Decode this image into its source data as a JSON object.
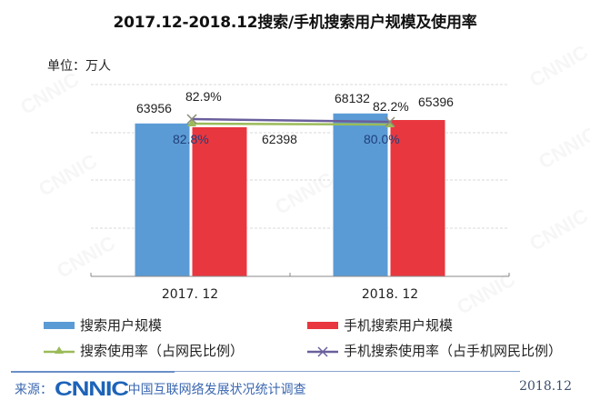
{
  "header": {
    "title": "2017.12-2018.12搜索/手机搜索用户规模及使用率",
    "unit": "单位：万人"
  },
  "chart_data": {
    "type": "bar",
    "title": "2017.12-2018.12搜索/手机搜索用户规模及使用率",
    "ylabel": "单位：万人",
    "xlabel": "",
    "categories": [
      "2017.12",
      "2018.12"
    ],
    "ylim": [
      0,
      80000
    ],
    "grid": true,
    "legend_position": "bottom",
    "series": [
      {
        "name": "搜索用户规模",
        "type": "bar",
        "color": "#5b9bd5",
        "values": [
          63956,
          68132
        ]
      },
      {
        "name": "手机搜索用户规模",
        "type": "bar",
        "color": "#e8373f",
        "values": [
          62398,
          65396
        ]
      },
      {
        "name": "搜索使用率（占网民比例）",
        "type": "line",
        "color": "#9bbb59",
        "marker": "triangle",
        "values": [
          82.8,
          82.2
        ],
        "unit": "%"
      },
      {
        "name": "手机搜索使用率（占手机网民比例）",
        "type": "line",
        "color": "#6a5f9c",
        "marker": "x",
        "values": [
          82.9,
          80.0
        ],
        "unit": "%"
      }
    ],
    "labels": {
      "bar_labels": [
        [
          "63956",
          "68132"
        ],
        [
          "62398",
          "65396"
        ]
      ],
      "rate_labels": [
        [
          "82.8%",
          "82.2%"
        ],
        [
          "82.9%",
          "80.0%"
        ]
      ]
    }
  },
  "axis": {
    "x_labels": [
      "2017. 12",
      "2018. 12"
    ]
  },
  "legend": {
    "items": [
      {
        "label": "搜索用户规模",
        "color": "#5b9bd5",
        "kind": "bar"
      },
      {
        "label": "手机搜索用户规模",
        "color": "#e8373f",
        "kind": "bar"
      },
      {
        "label": "搜索使用率（占网民比例）",
        "color": "#9bbb59",
        "kind": "line-triangle"
      },
      {
        "label": "手机搜索使用率（占手机网民比例）",
        "color": "#6a5f9c",
        "kind": "line-x"
      }
    ]
  },
  "footer": {
    "source_prefix": "来源：",
    "logo": "CNNIC",
    "source_desc": "中国互联网络发展状况统计调查",
    "date": "2018.12"
  },
  "watermark": "CNNIC"
}
